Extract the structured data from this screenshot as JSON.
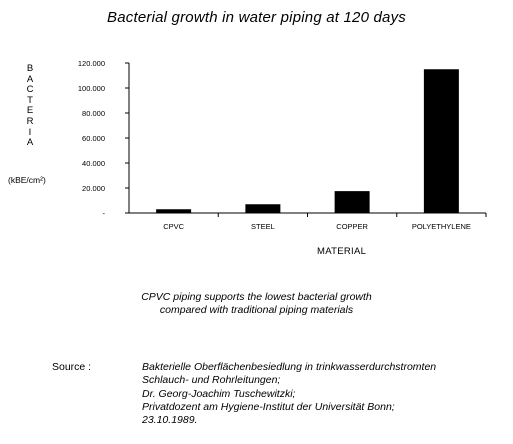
{
  "chart_data": {
    "type": "bar",
    "title": "Bacterial growth in water piping at 120 days",
    "ylabel_letters": [
      "B",
      "A",
      "C",
      "T",
      "E",
      "R",
      "I",
      "A"
    ],
    "yunit": "(kBE/cm²)",
    "xlabel": "MATERIAL",
    "categories": [
      "CPVC",
      "STEEL",
      "COPPER",
      "POLYETHYLENE"
    ],
    "values": [
      3000,
      7000,
      17500,
      115000
    ],
    "ylim": [
      0,
      120000
    ],
    "yticks": [
      0,
      20000,
      40000,
      60000,
      80000,
      100000,
      120000
    ],
    "ytick_labels": [
      "-",
      "20.000",
      "40.000",
      "60.000",
      "80.000",
      "100.000",
      "120.000"
    ],
    "grid": false,
    "bar_color": "#000000"
  },
  "caption": [
    "CPVC piping supports the lowest bacterial growth",
    "compared with traditional piping materials"
  ],
  "source": {
    "label": "Source :",
    "lines": [
      "Bakterielle Oberflächenbesiedlung in trinkwasserdurchstromten",
      "Schlauch- und Rohrleitungen;",
      "Dr. Georg-Joachim Tuschewitzki;",
      "Privatdozent am Hygiene-Institut der Universität Bonn;",
      "23.10.1989."
    ]
  }
}
